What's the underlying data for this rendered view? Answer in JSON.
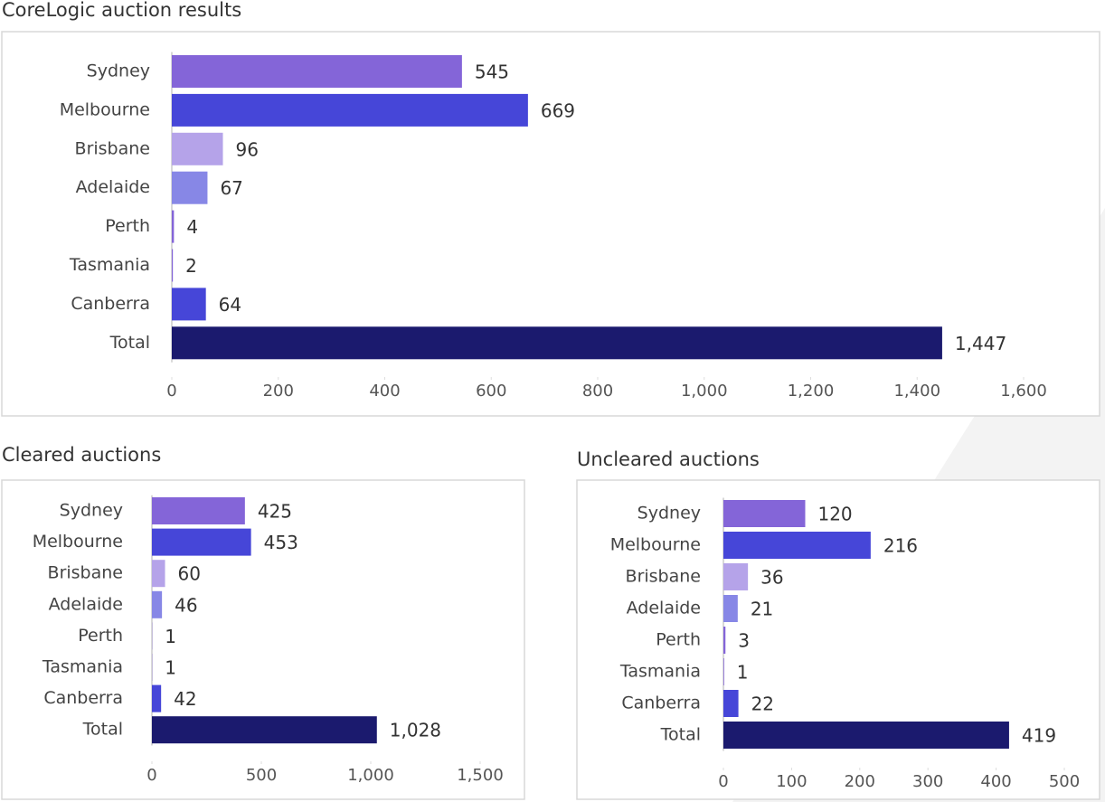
{
  "chart_data": [
    {
      "type": "bar",
      "orientation": "horizontal",
      "title": "CoreLogic auction results",
      "categories": [
        "Sydney",
        "Melbourne",
        "Brisbane",
        "Adelaide",
        "Perth",
        "Tasmania",
        "Canberra",
        "Total"
      ],
      "values": [
        545,
        669,
        96,
        67,
        4,
        2,
        64,
        1447
      ],
      "value_labels": [
        "545",
        "669",
        "96",
        "67",
        "4",
        "2",
        "64",
        "1,447"
      ],
      "colors": [
        "#8465d8",
        "#4646d8",
        "#b5a3e9",
        "#8787e6",
        "#8465d8",
        "#8465d8",
        "#4646d8",
        "#1b1a6e"
      ],
      "xlim": [
        0,
        1600
      ],
      "xticks": [
        0,
        200,
        400,
        600,
        800,
        {
          "value": 1000,
          "label": "1,000"
        },
        {
          "value": 1200,
          "label": "1,200"
        },
        {
          "value": 1400,
          "label": "1,400"
        },
        {
          "value": 1600,
          "label": "1,600"
        }
      ]
    },
    {
      "type": "bar",
      "orientation": "horizontal",
      "title": "Cleared auctions",
      "categories": [
        "Sydney",
        "Melbourne",
        "Brisbane",
        "Adelaide",
        "Perth",
        "Tasmania",
        "Canberra",
        "Total"
      ],
      "values": [
        425,
        453,
        60,
        46,
        1,
        1,
        42,
        1028
      ],
      "value_labels": [
        "425",
        "453",
        "60",
        "46",
        "1",
        "1",
        "42",
        "1,028"
      ],
      "colors": [
        "#8465d8",
        "#4646d8",
        "#b5a3e9",
        "#8787e6",
        "#8465d8",
        "#8465d8",
        "#4646d8",
        "#1b1a6e"
      ],
      "xlim": [
        0,
        1500
      ],
      "xticks": [
        0,
        500,
        {
          "value": 1000,
          "label": "1,000"
        },
        {
          "value": 1500,
          "label": "1,500"
        }
      ]
    },
    {
      "type": "bar",
      "orientation": "horizontal",
      "title": "Uncleared auctions",
      "categories": [
        "Sydney",
        "Melbourne",
        "Brisbane",
        "Adelaide",
        "Perth",
        "Tasmania",
        "Canberra",
        "Total"
      ],
      "values": [
        120,
        216,
        36,
        21,
        3,
        1,
        22,
        419
      ],
      "value_labels": [
        "120",
        "216",
        "36",
        "21",
        "3",
        "1",
        "22",
        "419"
      ],
      "colors": [
        "#8465d8",
        "#4646d8",
        "#b5a3e9",
        "#8787e6",
        "#8465d8",
        "#8465d8",
        "#4646d8",
        "#1b1a6e"
      ],
      "xlim": [
        0,
        500
      ],
      "xticks": [
        0,
        100,
        200,
        300,
        400,
        500
      ]
    }
  ]
}
